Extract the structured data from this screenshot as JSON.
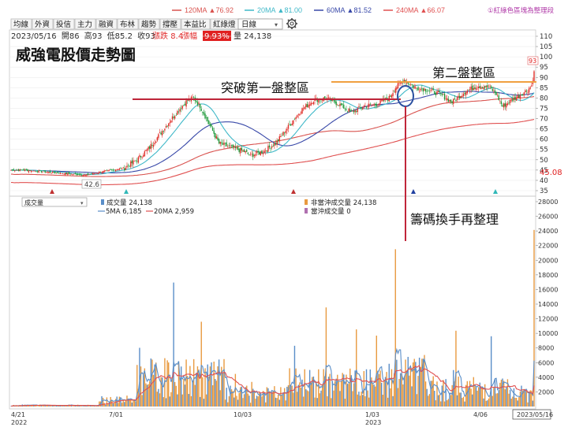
{
  "legend_top": [
    {
      "label": "120MA",
      "value": "▲76.92",
      "color": "#d9534f"
    },
    {
      "label": "20MA",
      "value": "▲81.00",
      "color": "#3fb8c8"
    },
    {
      "label": "60MA",
      "value": "▲81.52",
      "color": "#3848a8"
    },
    {
      "label": "240MA",
      "value": "▲66.07",
      "color": "#e05050"
    }
  ],
  "color_note": "①紅綠色區塊為整理段",
  "tabs": [
    "均線",
    "外資",
    "投信",
    "主力",
    "融資",
    "布林",
    "趨勢",
    "撐壓",
    "本益比",
    "紅綠燈",
    "分價量"
  ],
  "period_select": "日線",
  "quote": {
    "date": "2023/05/16",
    "open_label": "開",
    "open": "86",
    "high_label": "高",
    "high": "93",
    "low_label": "低",
    "low": "85.2",
    "close_label": "收",
    "close": "93",
    "change_label": "漲跌",
    "change": "8.4",
    "pct_label": "漲幅",
    "pct": "9.93%",
    "vol_label": "量",
    "vol": "24,138"
  },
  "title": "威強電股價走勢圖",
  "annotations": {
    "zone1": "突破第一盤整區",
    "zone2": "第二盤整區",
    "chips": "籌碼換手再整理"
  },
  "labels": {
    "last_price": "93",
    "right_mark": "45.08",
    "low_mark": "42.6"
  },
  "volume_panel": {
    "select": "成交量",
    "legend_vol": "成交量 24,138",
    "legend_nonday": "非當沖成交量 24,138",
    "legend_day": "當沖成交量 0",
    "legend_5ma": "5MA 6,185",
    "legend_20ma": "20MA 2,959"
  },
  "price_axis": [
    "110",
    "105",
    "100",
    "95",
    "90",
    "85",
    "80",
    "75",
    "70",
    "65",
    "60",
    "55",
    "50",
    "45",
    "40",
    "35"
  ],
  "volume_axis": [
    "28000",
    "26000",
    "24000",
    "22000",
    "20000",
    "18000",
    "16000",
    "14000",
    "12000",
    "10000",
    "8000",
    "6000",
    "4000",
    "2000"
  ],
  "x_axis": [
    {
      "label": "4/21",
      "sub": "2022"
    },
    {
      "label": "7/01",
      "sub": ""
    },
    {
      "label": "10/03",
      "sub": ""
    },
    {
      "label": "1/03",
      "sub": "2023"
    },
    {
      "label": "4/06",
      "sub": ""
    },
    {
      "label": "2023/05/16",
      "sub": ""
    }
  ],
  "chart_data": {
    "type": "candlestick_with_volume",
    "title": "威強電股價走勢圖",
    "price_range": [
      35,
      110
    ],
    "volume_range": [
      0,
      28000
    ],
    "close_anchors": [
      [
        0,
        45
      ],
      [
        10,
        45
      ],
      [
        20,
        44.5
      ],
      [
        30,
        44
      ],
      [
        40,
        43.5
      ],
      [
        50,
        43
      ],
      [
        60,
        42.6
      ],
      [
        70,
        44
      ],
      [
        80,
        45
      ],
      [
        90,
        46
      ],
      [
        100,
        50
      ],
      [
        110,
        56
      ],
      [
        120,
        64
      ],
      [
        130,
        72
      ],
      [
        140,
        79
      ],
      [
        145,
        80
      ],
      [
        150,
        76
      ],
      [
        160,
        64
      ],
      [
        165,
        58
      ],
      [
        175,
        56
      ],
      [
        185,
        54
      ],
      [
        190,
        52
      ],
      [
        200,
        54
      ],
      [
        210,
        58
      ],
      [
        220,
        66
      ],
      [
        230,
        74
      ],
      [
        240,
        79
      ],
      [
        250,
        80
      ],
      [
        260,
        77
      ],
      [
        270,
        73
      ],
      [
        280,
        76
      ],
      [
        290,
        77
      ],
      [
        300,
        80
      ],
      [
        305,
        85
      ],
      [
        312,
        89
      ],
      [
        320,
        85
      ],
      [
        330,
        84
      ],
      [
        340,
        82
      ],
      [
        350,
        78
      ],
      [
        360,
        83
      ],
      [
        370,
        86
      ],
      [
        380,
        85
      ],
      [
        385,
        82
      ],
      [
        390,
        76
      ],
      [
        400,
        80
      ],
      [
        410,
        84
      ],
      [
        413,
        86
      ],
      [
        415,
        93
      ]
    ],
    "last_price": 93,
    "zone1_level": 80,
    "zone2_level": 87,
    "volume_spike": {
      "index": 305,
      "value": 21500
    },
    "last_volume": 24138,
    "ma": {
      "20MA": 81.0,
      "60MA": 81.52,
      "120MA": 76.92,
      "240MA": 66.07
    },
    "vol_ma": {
      "5MA": 6185,
      "20MA": 2959
    }
  }
}
